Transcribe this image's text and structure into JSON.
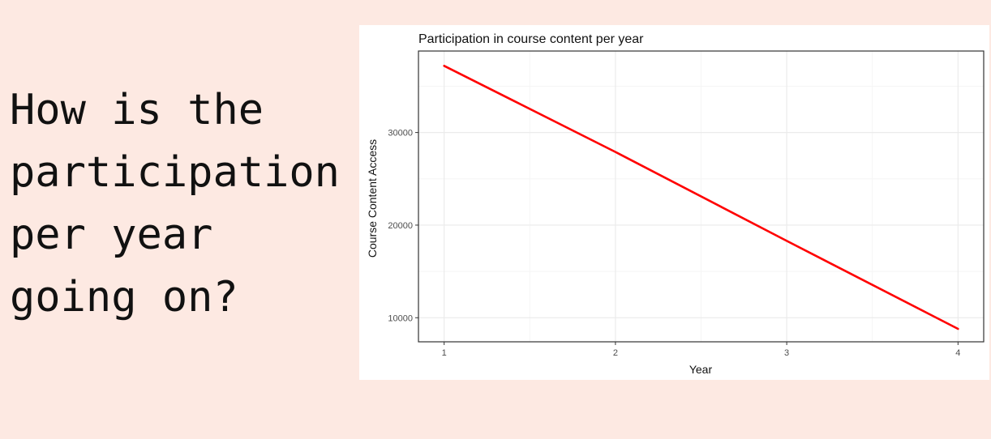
{
  "question": {
    "lines": [
      "How is the",
      "participation",
      "per year",
      "going on?"
    ]
  },
  "colors": {
    "background": "#fde9e2",
    "line": "#ff0000",
    "grid_major": "#ebebeb",
    "grid_minor": "#f5f5f5",
    "panel_border": "#333333"
  },
  "chart_data": {
    "type": "line",
    "title": "Participation in course content per year",
    "xlabel": "Year",
    "ylabel": "Course Content Access",
    "x": [
      1,
      2,
      3,
      4
    ],
    "series": [
      {
        "values": [
          37200,
          27900,
          18300,
          8800
        ]
      }
    ],
    "xticks": [
      "1",
      "2",
      "3",
      "4"
    ],
    "yticks": [
      "10000",
      "20000",
      "30000"
    ],
    "xlim": [
      0.85,
      4.15
    ],
    "ylim": [
      7400,
      38800
    ],
    "grid": true,
    "legend": "none"
  }
}
